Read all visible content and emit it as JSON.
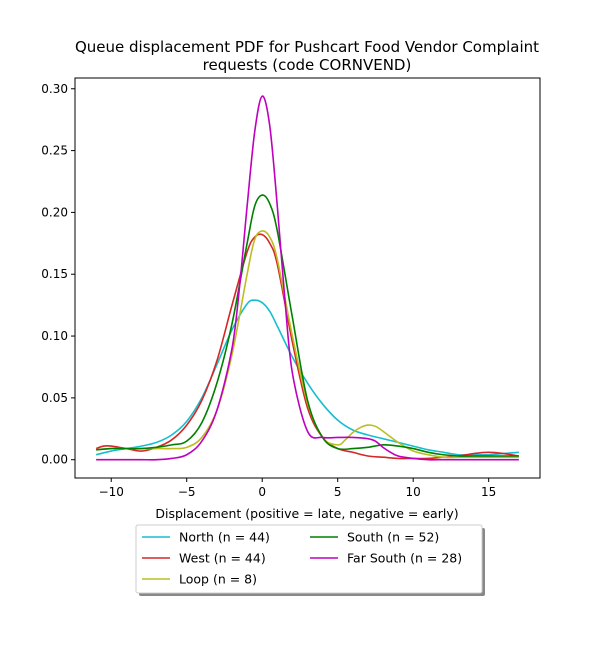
{
  "chart_data": {
    "type": "line",
    "title_line1": "Queue displacement PDF for Pushcart Food Vendor Complaint",
    "title_line2": "requests (code CORNVEND)",
    "xlabel": "Displacement (positive = late, negative = early)",
    "ylabel": "",
    "xlim": [
      -12.4,
      18.4
    ],
    "ylim": [
      -0.0148,
      0.3087
    ],
    "xticks": [
      -10,
      -5,
      0,
      5,
      10,
      15
    ],
    "xtick_labels": [
      "−10",
      "−5",
      "0",
      "5",
      "10",
      "15"
    ],
    "yticks": [
      0.0,
      0.05,
      0.1,
      0.15,
      0.2,
      0.25,
      0.3
    ],
    "ytick_labels": [
      "0.00",
      "0.05",
      "0.10",
      "0.15",
      "0.20",
      "0.25",
      "0.30"
    ],
    "grid": false,
    "legend_position": "below plot, two columns",
    "series": [
      {
        "name": "North (n = 44)",
        "color": "#17becf",
        "x": [
          -11,
          -10,
          -9,
          -8,
          -7,
          -6,
          -5,
          -4,
          -3,
          -2,
          -1,
          -0.5,
          0,
          0.5,
          1,
          2,
          3,
          4,
          5,
          6,
          7,
          8,
          9,
          10,
          11,
          12,
          13,
          14,
          15,
          16,
          17
        ],
        "y": [
          0.004,
          0.007,
          0.009,
          0.011,
          0.014,
          0.02,
          0.031,
          0.05,
          0.077,
          0.105,
          0.126,
          0.129,
          0.127,
          0.12,
          0.108,
          0.083,
          0.062,
          0.045,
          0.032,
          0.024,
          0.02,
          0.017,
          0.014,
          0.011,
          0.008,
          0.006,
          0.004,
          0.004,
          0.004,
          0.005,
          0.006
        ]
      },
      {
        "name": "West (n = 44)",
        "color": "#d62728",
        "x": [
          -11,
          -10.5,
          -10,
          -9,
          -8,
          -7,
          -6,
          -5,
          -4,
          -3,
          -2,
          -1,
          -0.5,
          0,
          0.5,
          1,
          2,
          3,
          4,
          5,
          6,
          7,
          8,
          9,
          10,
          11,
          12,
          13,
          14,
          15,
          16,
          17
        ],
        "y": [
          0.009,
          0.011,
          0.011,
          0.009,
          0.007,
          0.01,
          0.016,
          0.028,
          0.048,
          0.08,
          0.125,
          0.168,
          0.18,
          0.182,
          0.175,
          0.158,
          0.095,
          0.042,
          0.018,
          0.009,
          0.006,
          0.003,
          0.002,
          0.001,
          0.001,
          0.001,
          0.002,
          0.003,
          0.005,
          0.006,
          0.005,
          0.003
        ]
      },
      {
        "name": "Loop (n = 8)",
        "color": "#bcbd22",
        "x": [
          -11,
          -10,
          -9,
          -8,
          -7,
          -6,
          -5,
          -4,
          -3,
          -2,
          -1,
          -0.5,
          0,
          0.5,
          1,
          2,
          3,
          4,
          5,
          5.5,
          6,
          6.5,
          7,
          7.5,
          8,
          9,
          10,
          11,
          12,
          13,
          14,
          15,
          16,
          17
        ],
        "y": [
          0.008,
          0.009,
          0.009,
          0.009,
          0.009,
          0.009,
          0.01,
          0.018,
          0.04,
          0.085,
          0.15,
          0.178,
          0.185,
          0.18,
          0.162,
          0.1,
          0.046,
          0.018,
          0.012,
          0.016,
          0.022,
          0.026,
          0.028,
          0.027,
          0.023,
          0.014,
          0.007,
          0.004,
          0.002,
          0.002,
          0.002,
          0.002,
          0.002,
          0.002
        ]
      },
      {
        "name": "South (n = 52)",
        "color": "#008000",
        "x": [
          -11,
          -10,
          -9,
          -8,
          -7,
          -6,
          -5,
          -4,
          -3,
          -2,
          -1,
          -0.5,
          0,
          0.5,
          1,
          2,
          3,
          4,
          5,
          6,
          7,
          8,
          9,
          10,
          11,
          12,
          13,
          14,
          15,
          16,
          17
        ],
        "y": [
          0.008,
          0.009,
          0.009,
          0.009,
          0.01,
          0.012,
          0.015,
          0.03,
          0.062,
          0.11,
          0.175,
          0.205,
          0.214,
          0.207,
          0.185,
          0.115,
          0.048,
          0.018,
          0.009,
          0.009,
          0.01,
          0.012,
          0.011,
          0.009,
          0.006,
          0.004,
          0.003,
          0.003,
          0.003,
          0.003,
          0.003
        ]
      },
      {
        "name": "Far South (n = 28)",
        "color": "#bf00bf",
        "x": [
          -11,
          -10,
          -9,
          -8,
          -7,
          -6,
          -5,
          -4,
          -3,
          -2,
          -1.5,
          -1,
          -0.5,
          0,
          0.5,
          1,
          1.5,
          2,
          3,
          4,
          5,
          6,
          7,
          7.5,
          8,
          8.5,
          9,
          10,
          11,
          12,
          13,
          14,
          15,
          16,
          17
        ],
        "y": [
          0,
          0,
          0,
          0,
          0,
          0.001,
          0.004,
          0.015,
          0.04,
          0.09,
          0.14,
          0.205,
          0.265,
          0.294,
          0.27,
          0.205,
          0.13,
          0.07,
          0.023,
          0.018,
          0.018,
          0.018,
          0.017,
          0.015,
          0.01,
          0.006,
          0.003,
          0.001,
          0,
          0,
          0,
          0,
          0,
          0,
          0
        ]
      }
    ]
  }
}
